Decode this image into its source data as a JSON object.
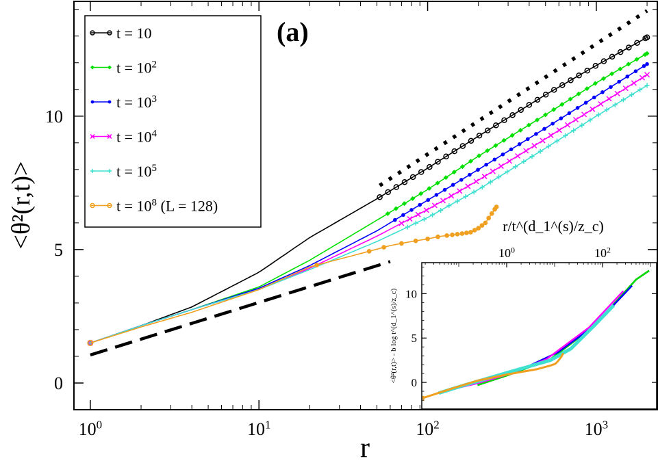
{
  "chart_data": [
    {
      "type": "line",
      "panel_label": "(a)",
      "xlabel": "r",
      "ylabel": "<θ²(r,t)>",
      "xscale": "log",
      "xlim": [
        0.8,
        2300
      ],
      "ylim": [
        -1,
        14.3
      ],
      "x_tick_labels": [
        "10^0",
        "10^1",
        "10^2",
        "10^3"
      ],
      "y_tick_labels": [
        "0",
        "5",
        "10"
      ],
      "grid": false,
      "legend_position": "top-left",
      "series": [
        {
          "name": "t = 10",
          "color": "#000000",
          "marker": "circle",
          "x": [
            1,
            2,
            4,
            10,
            20,
            50,
            100,
            200,
            500,
            1000,
            2000
          ],
          "y": [
            1.5,
            2.15,
            2.85,
            4.15,
            5.45,
            6.9,
            8.05,
            9.25,
            10.8,
            11.9,
            12.95
          ]
        },
        {
          "name": "t = 10^2",
          "color": "#00e000",
          "marker": "diamond",
          "x": [
            1,
            2,
            4,
            10,
            20,
            50,
            100,
            200,
            500,
            1000,
            2000
          ],
          "y": [
            1.5,
            2.15,
            2.75,
            3.6,
            4.6,
            6.1,
            7.25,
            8.5,
            10.05,
            11.25,
            12.35
          ]
        },
        {
          "name": "t = 10^3",
          "color": "#0000ff",
          "marker": "dot",
          "x": [
            1,
            2,
            4,
            10,
            20,
            50,
            100,
            200,
            500,
            1000,
            2000
          ],
          "y": [
            1.5,
            2.15,
            2.75,
            3.55,
            4.4,
            5.7,
            6.85,
            8.0,
            9.55,
            10.75,
            11.95
          ]
        },
        {
          "name": "t = 10^4",
          "color": "#ff00ff",
          "marker": "x",
          "x": [
            1,
            2,
            4,
            10,
            20,
            50,
            100,
            200,
            500,
            1000,
            2000
          ],
          "y": [
            1.5,
            2.15,
            2.75,
            3.5,
            4.3,
            5.5,
            6.5,
            7.6,
            9.15,
            10.35,
            11.55
          ]
        },
        {
          "name": "t = 10^5",
          "color": "#40e0d0",
          "marker": "plus",
          "x": [
            1,
            2,
            4,
            10,
            20,
            50,
            100,
            200,
            500,
            1000,
            2000
          ],
          "y": [
            1.5,
            2.15,
            2.75,
            3.5,
            4.25,
            5.3,
            6.2,
            7.25,
            8.8,
            10.0,
            11.15
          ]
        },
        {
          "name": "t = 10^8 (L = 128)",
          "color": "#f0a020",
          "marker": "circle",
          "x": [
            1,
            2,
            4,
            10,
            20,
            40,
            60,
            80,
            100,
            120,
            140,
            160,
            180,
            200,
            220,
            240,
            256
          ],
          "y": [
            1.5,
            2.1,
            2.65,
            3.5,
            4.35,
            4.85,
            5.15,
            5.3,
            5.4,
            5.5,
            5.55,
            5.6,
            5.65,
            5.8,
            6.0,
            6.35,
            6.6
          ]
        }
      ],
      "reference_lines": [
        {
          "style": "dotted",
          "x": [
            52,
            2000
          ],
          "y": [
            7.4,
            13.95
          ]
        },
        {
          "style": "dashed",
          "x": [
            1,
            60
          ],
          "y": [
            1.05,
            4.55
          ]
        }
      ]
    },
    {
      "type": "line",
      "inset": true,
      "position": "bottom-right",
      "xscale": "log",
      "xlabel": "r/t^(d_1^(s)/z_c)",
      "ylabel": "<θ²(r,t)> - b log t^(d_1^(s)/z_c)",
      "x_tick_labels": [
        "10^0",
        "10^2"
      ],
      "y_tick_labels": [
        "0",
        "5",
        "10"
      ],
      "xlim": [
        0.01,
        3000
      ],
      "ylim": [
        -3,
        13.5
      ],
      "series": [
        {
          "name": "t = 10",
          "color": "#000000",
          "x": [
            0.2,
            1,
            10,
            100,
            1000,
            2000
          ],
          "y": [
            -0.3,
            0.8,
            2.6,
            6.3,
            11.6,
            12.6
          ]
        },
        {
          "name": "t = 10^2",
          "color": "#00e000",
          "x": [
            0.2,
            1,
            10,
            100,
            1000,
            2000
          ],
          "y": [
            -0.3,
            0.8,
            2.6,
            6.3,
            11.6,
            12.6
          ]
        },
        {
          "name": "t = 10^3",
          "color": "#0000ff",
          "x": [
            0.05,
            0.3,
            2,
            15,
            100,
            800
          ],
          "y": [
            -0.8,
            0.2,
            1.4,
            3.4,
            6.3,
            10.9
          ]
        },
        {
          "name": "t = 10^4",
          "color": "#ff00ff",
          "x": [
            0.03,
            0.2,
            1,
            8,
            80,
            500
          ],
          "y": [
            -1.0,
            -0.1,
            0.9,
            2.6,
            6.2,
            10.3
          ]
        },
        {
          "name": "t = 10^5",
          "color": "#40e0d0",
          "x": [
            0.025,
            0.1,
            1,
            10,
            30,
            100,
            300
          ],
          "y": [
            -1.2,
            -0.3,
            1.1,
            2.5,
            3.8,
            6.3,
            8.7
          ]
        },
        {
          "name": "t = 10^8 (L = 128)",
          "color": "#f0a020",
          "x": [
            0.01,
            0.05,
            0.2,
            1,
            5,
            10,
            13,
            15,
            18,
            20
          ],
          "y": [
            -1.8,
            -0.7,
            0.2,
            0.9,
            1.5,
            1.9,
            2.1,
            2.4,
            2.9,
            3.3
          ]
        }
      ]
    }
  ]
}
